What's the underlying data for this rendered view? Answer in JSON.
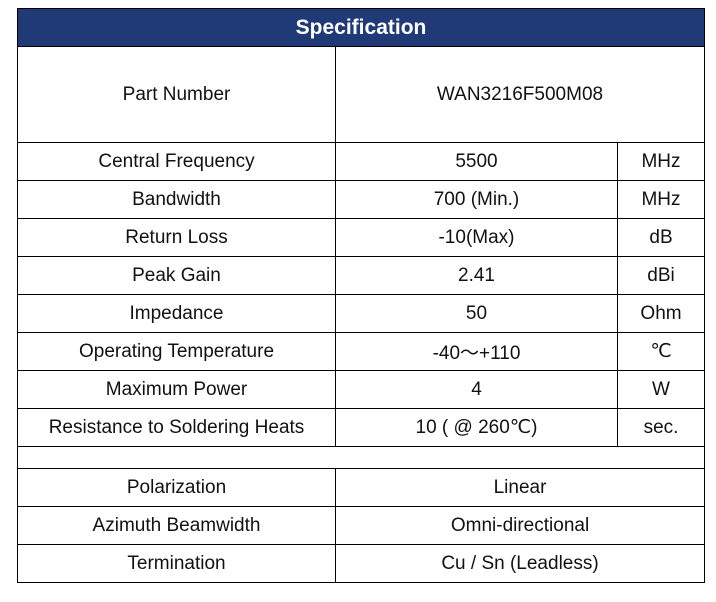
{
  "header": {
    "title": "Specification"
  },
  "part": {
    "label": "Part Number",
    "value": "WAN3216F500M08"
  },
  "rows": [
    {
      "label": "Central Frequency",
      "value": "5500",
      "unit": "MHz"
    },
    {
      "label": "Bandwidth",
      "value": "700 (Min.)",
      "unit": "MHz"
    },
    {
      "label": "Return Loss",
      "value": "-10(Max)",
      "unit": "dB"
    },
    {
      "label": "Peak Gain",
      "value": "2.41",
      "unit": "dBi"
    },
    {
      "label": "Impedance",
      "value": "50",
      "unit": "Ohm"
    },
    {
      "label": "Operating Temperature",
      "value": "-40～+110",
      "unit": "℃"
    },
    {
      "label": "Maximum Power",
      "value": "4",
      "unit": "W"
    },
    {
      "label": "Resistance to Soldering Heats",
      "value": "10 ( @ 260℃)",
      "unit": "sec."
    }
  ],
  "rows2": [
    {
      "label": "Polarization",
      "value": "Linear"
    },
    {
      "label": "Azimuth Beamwidth",
      "value": "Omni-directional"
    },
    {
      "label": "Termination",
      "value": "Cu / Sn (Leadless)"
    }
  ]
}
